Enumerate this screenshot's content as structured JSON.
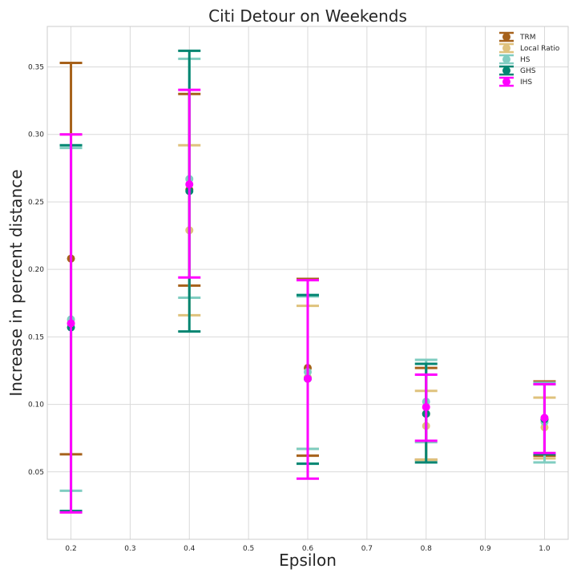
{
  "chart_data": {
    "type": "scatter",
    "title": "Citi Detour on Weekends",
    "xlabel": "Epsilon",
    "ylabel": "Increase in percent distance",
    "xlim": [
      0.16,
      1.04
    ],
    "ylim": [
      0.0,
      0.38
    ],
    "x_ticks": [
      0.2,
      0.3,
      0.4,
      0.5,
      0.6,
      0.7,
      0.8,
      0.9,
      1.0
    ],
    "x_tick_labels": [
      "0.2",
      "0.3",
      "0.4",
      "0.5",
      "0.6",
      "0.7",
      "0.8",
      "0.9",
      "1.0"
    ],
    "y_ticks": [
      0.05,
      0.1,
      0.15,
      0.2,
      0.25,
      0.3,
      0.35
    ],
    "y_tick_labels": [
      "0.05",
      "0.10",
      "0.15",
      "0.20",
      "0.25",
      "0.30",
      "0.35"
    ],
    "grid": true,
    "legend_position": "top-right",
    "series": [
      {
        "name": "TRM",
        "color": "#a6611a",
        "points": [
          {
            "x": 0.2,
            "y": 0.208,
            "low": 0.063,
            "high": 0.353
          },
          {
            "x": 0.4,
            "y": 0.259,
            "low": 0.188,
            "high": 0.33
          },
          {
            "x": 0.6,
            "y": 0.127,
            "low": 0.062,
            "high": 0.193
          },
          {
            "x": 0.8,
            "y": 0.093,
            "low": 0.059,
            "high": 0.127
          },
          {
            "x": 1.0,
            "y": 0.089,
            "low": 0.062,
            "high": 0.117
          }
        ]
      },
      {
        "name": "Local Ratio",
        "color": "#dfc27d",
        "points": [
          {
            "x": 0.2,
            "y": 0.16,
            "low": 0.02,
            "high": 0.3
          },
          {
            "x": 0.4,
            "y": 0.229,
            "low": 0.166,
            "high": 0.292
          },
          {
            "x": 0.6,
            "y": 0.12,
            "low": 0.067,
            "high": 0.173
          },
          {
            "x": 0.8,
            "y": 0.084,
            "low": 0.059,
            "high": 0.11
          },
          {
            "x": 1.0,
            "y": 0.083,
            "low": 0.06,
            "high": 0.105
          }
        ]
      },
      {
        "name": "HS",
        "color": "#80cdc1",
        "points": [
          {
            "x": 0.2,
            "y": 0.163,
            "low": 0.036,
            "high": 0.29
          },
          {
            "x": 0.4,
            "y": 0.267,
            "low": 0.179,
            "high": 0.356
          },
          {
            "x": 0.6,
            "y": 0.124,
            "low": 0.067,
            "high": 0.18
          },
          {
            "x": 0.8,
            "y": 0.102,
            "low": 0.072,
            "high": 0.133
          },
          {
            "x": 1.0,
            "y": 0.087,
            "low": 0.057,
            "high": 0.116
          }
        ]
      },
      {
        "name": "GHS",
        "color": "#018571",
        "points": [
          {
            "x": 0.2,
            "y": 0.157,
            "low": 0.021,
            "high": 0.292
          },
          {
            "x": 0.4,
            "y": 0.258,
            "low": 0.154,
            "high": 0.362
          },
          {
            "x": 0.6,
            "y": 0.119,
            "low": 0.056,
            "high": 0.181
          },
          {
            "x": 0.8,
            "y": 0.093,
            "low": 0.057,
            "high": 0.13
          },
          {
            "x": 1.0,
            "y": 0.089,
            "low": 0.063,
            "high": 0.115
          }
        ]
      },
      {
        "name": "IHS",
        "color": "#ff00ff",
        "points": [
          {
            "x": 0.2,
            "y": 0.16,
            "low": 0.02,
            "high": 0.3
          },
          {
            "x": 0.4,
            "y": 0.263,
            "low": 0.194,
            "high": 0.333
          },
          {
            "x": 0.6,
            "y": 0.119,
            "low": 0.045,
            "high": 0.192
          },
          {
            "x": 0.8,
            "y": 0.098,
            "low": 0.073,
            "high": 0.122
          },
          {
            "x": 1.0,
            "y": 0.09,
            "low": 0.064,
            "high": 0.115
          }
        ]
      }
    ]
  }
}
